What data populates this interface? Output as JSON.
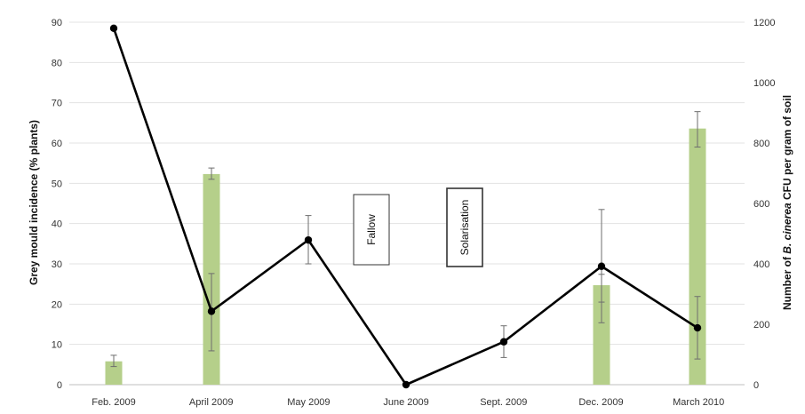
{
  "chart_data": {
    "type": "bar+line",
    "categories": [
      "Feb. 2009",
      "April 2009",
      "May 2009",
      "June 2009",
      "Sept. 2009",
      "Dec. 2009",
      "March 2010"
    ],
    "left_axis": {
      "label": "Grey mould incidence (% plants)",
      "ylim": [
        0,
        90
      ],
      "ticks": [
        "0",
        "10",
        "20",
        "30",
        "40",
        "50",
        "60",
        "70",
        "80",
        "90"
      ]
    },
    "right_axis": {
      "label_prefix": "Number of ",
      "label_italic": "B. cinerea",
      "label_suffix": " CFU per gram of soil",
      "ylim": [
        0,
        1200
      ],
      "ticks": [
        "0",
        "200",
        "400",
        "600",
        "800",
        "1000",
        "1200"
      ]
    },
    "bars": {
      "axis": "left",
      "color": "#b5cf8a",
      "values": [
        5.8,
        52.3,
        null,
        null,
        null,
        24.7,
        63.6
      ],
      "err_low": [
        4.5,
        51.0,
        null,
        null,
        null,
        20.5,
        59.0
      ],
      "err_high": [
        7.3,
        53.8,
        null,
        null,
        null,
        27.4,
        67.8
      ]
    },
    "line": {
      "axis": "right",
      "color": "#000000",
      "values": [
        1180,
        243,
        479,
        0,
        142,
        392,
        188
      ],
      "err_low": [
        null,
        112,
        400,
        null,
        90,
        205,
        85
      ],
      "err_high": [
        null,
        368,
        560,
        null,
        195,
        580,
        292
      ]
    },
    "annotations": [
      {
        "text": "Fallow",
        "category_index": 2.7
      },
      {
        "text": "Solarisation",
        "category_index": 3.92
      }
    ],
    "grid": true
  }
}
